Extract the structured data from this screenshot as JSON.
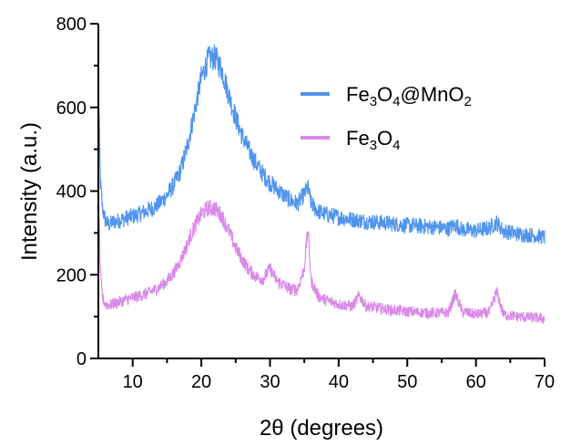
{
  "chart_data": {
    "type": "line",
    "xlabel": "2θ (degrees)",
    "ylabel": "Intensity (a.u.)",
    "xlim": [
      5,
      70
    ],
    "ylim": [
      0,
      800
    ],
    "xticks": [
      10,
      20,
      30,
      40,
      50,
      60,
      70
    ],
    "yticks": [
      0,
      200,
      400,
      600,
      800
    ],
    "legend_position": "top-right",
    "grid": false,
    "series": [
      {
        "name": "Fe3O4@MnO2",
        "legend_base": "Fe",
        "legend_sub1": "3",
        "legend_mid": "O",
        "legend_sub2": "4",
        "legend_tail": "@MnO",
        "legend_sub3": "2",
        "color": "#4f94ee",
        "x": [
          5,
          5.3,
          5.6,
          6,
          6.5,
          7,
          8,
          9,
          10,
          11,
          12,
          13,
          14,
          15,
          16,
          17,
          18,
          19,
          20,
          21,
          22,
          23,
          24,
          25,
          26,
          27,
          28,
          29,
          30,
          31,
          32,
          33,
          34,
          35,
          35.5,
          36,
          37,
          38,
          40,
          42,
          44,
          46,
          48,
          50,
          52,
          54,
          56,
          57,
          58,
          60,
          62,
          63,
          64,
          66,
          68,
          70
        ],
        "y": [
          660,
          420,
          360,
          330,
          320,
          325,
          330,
          335,
          340,
          345,
          352,
          360,
          372,
          390,
          415,
          450,
          510,
          590,
          670,
          715,
          720,
          690,
          630,
          575,
          530,
          495,
          465,
          440,
          420,
          405,
          390,
          378,
          370,
          392,
          410,
          370,
          352,
          345,
          338,
          332,
          328,
          325,
          322,
          318,
          316,
          314,
          310,
          320,
          308,
          305,
          312,
          325,
          305,
          298,
          295,
          290
        ]
      },
      {
        "name": "Fe3O4",
        "legend_base": "Fe",
        "legend_sub1": "3",
        "legend_mid": "O",
        "legend_sub2": "4",
        "legend_tail": "",
        "legend_sub3": "",
        "color": "#d98ae9",
        "x": [
          5,
          5.3,
          5.6,
          6,
          6.5,
          7,
          8,
          9,
          10,
          11,
          12,
          13,
          14,
          15,
          16,
          17,
          18,
          19,
          20,
          21,
          22,
          23,
          24,
          25,
          26,
          27,
          28,
          29,
          30,
          31,
          32,
          33,
          34,
          35,
          35.5,
          36,
          37,
          38,
          40,
          42,
          43,
          44,
          46,
          48,
          50,
          52,
          54,
          56,
          57,
          58,
          60,
          62,
          63,
          64,
          66,
          68,
          70
        ],
        "y": [
          430,
          200,
          145,
          130,
          128,
          130,
          135,
          140,
          145,
          150,
          155,
          162,
          172,
          185,
          205,
          235,
          275,
          315,
          345,
          360,
          358,
          340,
          305,
          265,
          235,
          210,
          195,
          190,
          215,
          185,
          175,
          165,
          165,
          215,
          310,
          185,
          150,
          140,
          130,
          125,
          150,
          125,
          120,
          115,
          112,
          110,
          108,
          110,
          155,
          112,
          105,
          110,
          160,
          105,
          100,
          98,
          95
        ]
      }
    ]
  }
}
